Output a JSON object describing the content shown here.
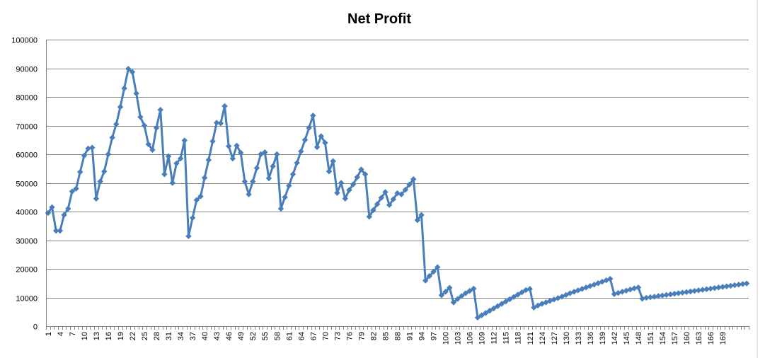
{
  "chart_data": {
    "type": "line",
    "title": "Net Profit",
    "xlabel": "",
    "ylabel": "",
    "ylim": [
      0,
      100000
    ],
    "yticks": [
      0,
      10000,
      20000,
      30000,
      40000,
      50000,
      60000,
      70000,
      80000,
      90000,
      100000
    ],
    "grid": true,
    "legend": "none",
    "x_tick_labels": [
      "1",
      "4",
      "7",
      "10",
      "13",
      "16",
      "19",
      "22",
      "25",
      "28",
      "31",
      "34",
      "37",
      "40",
      "43",
      "46",
      "49",
      "52",
      "55",
      "58",
      "61",
      "64",
      "67",
      "70",
      "73",
      "76",
      "79",
      "82",
      "85",
      "88",
      "91",
      "94",
      "97",
      "100",
      "103",
      "106",
      "109",
      "112",
      "115",
      "118",
      "121",
      "124",
      "127",
      "130",
      "133",
      "136",
      "139",
      "142",
      "145",
      "148",
      "151",
      "154",
      "157",
      "160",
      "163",
      "166",
      "169"
    ],
    "line_color": "#4a7ebb",
    "marker": "diamond",
    "series": [
      {
        "values": [
          39500,
          41500,
          33300,
          33300,
          38800,
          41000,
          47000,
          48000,
          53800,
          59500,
          62000,
          62300,
          44500,
          50500,
          54000,
          60000,
          65800,
          70500,
          76500,
          83000,
          89800,
          88700,
          81200,
          73000,
          70000,
          63500,
          61500,
          69200,
          75500,
          53000,
          59300,
          50000,
          56800,
          58500,
          64800,
          31400,
          37800,
          44000,
          45300,
          51800,
          58000,
          64500,
          71000,
          70800,
          76800,
          62800,
          58500,
          63000,
          60500,
          50500,
          46000,
          50500,
          55200,
          60000,
          60700,
          51600,
          55800,
          60000,
          41000,
          45000,
          49000,
          53000,
          57000,
          61000,
          65000,
          69200,
          73500,
          62500,
          66300,
          64000,
          54000,
          57600,
          46500,
          50000,
          44500,
          47500,
          49500,
          52000,
          54700,
          53000,
          38200,
          40500,
          42600,
          44800,
          46800,
          42300,
          44300,
          46400,
          46000,
          47600,
          49400,
          51300,
          37000,
          38800,
          15900,
          17500,
          19000,
          20600,
          10800,
          12000,
          13400,
          8300,
          9500,
          10500,
          11500,
          12300,
          13100,
          3000,
          3800,
          4600,
          5400,
          6200,
          7000,
          7800,
          8600,
          9400,
          10200,
          11000,
          11800,
          12600,
          13000,
          6500,
          7200,
          7800,
          8300,
          8800,
          9300,
          9800,
          10300,
          10900,
          11500,
          12000,
          12500,
          13000,
          13500,
          14000,
          14500,
          15000,
          15500,
          16000,
          16500,
          11200,
          11600,
          12000,
          12400,
          12800,
          13200,
          13500,
          9600,
          9900,
          10100,
          10300,
          10500,
          10700,
          10900,
          11100,
          11300,
          11500,
          11700,
          11900,
          12100,
          12300,
          12500,
          12700,
          12900,
          13100,
          13300,
          13500,
          13700,
          13900,
          14100,
          14300,
          14500,
          14700,
          14900
        ]
      }
    ]
  }
}
